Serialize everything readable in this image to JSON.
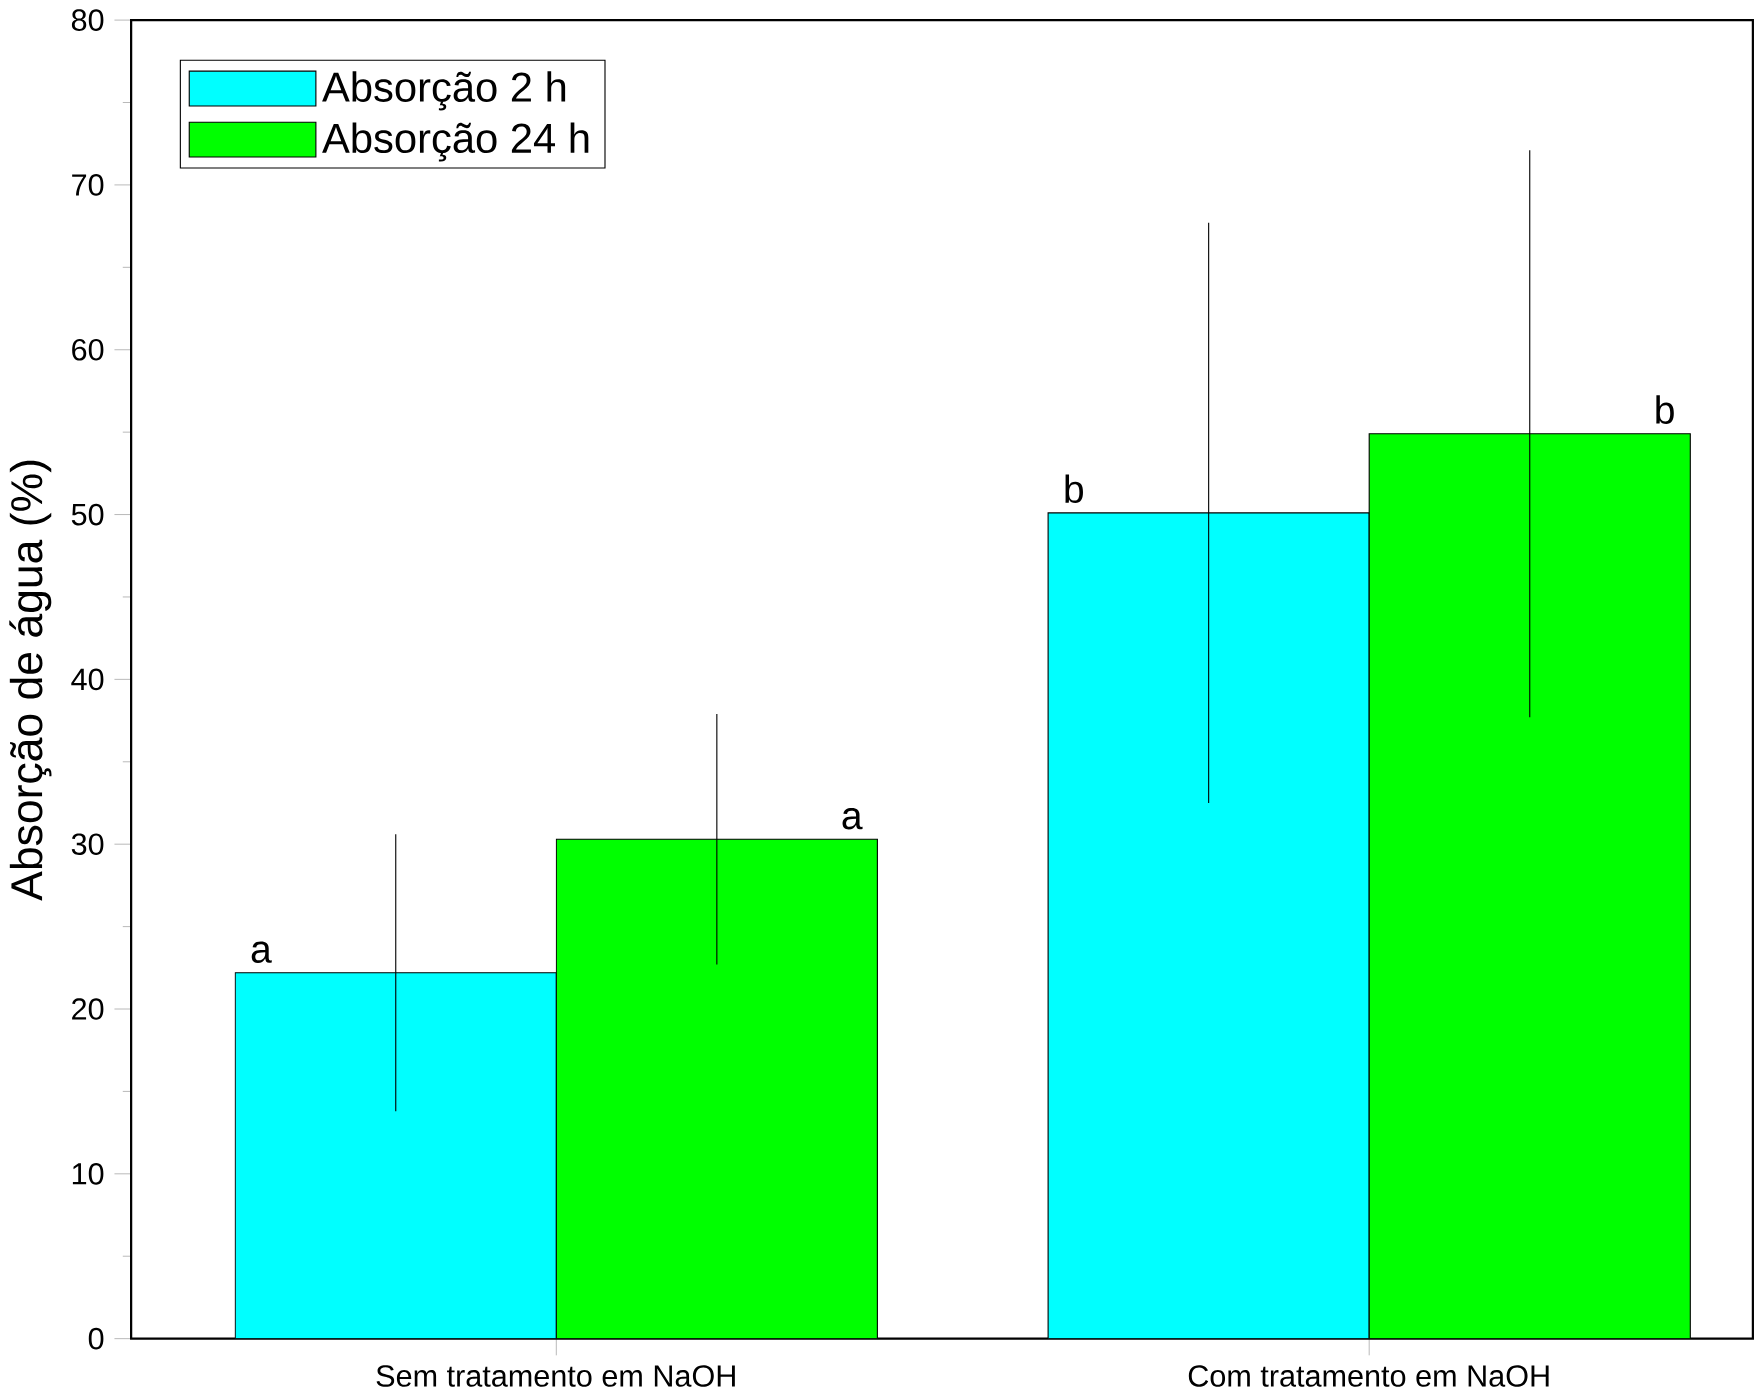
{
  "chart_data": {
    "type": "bar",
    "ylabel": "Absorção de água (%)",
    "categories": [
      "Sem tratamento em NaOH",
      "Com tratamento em NaOH"
    ],
    "series": [
      {
        "name": "Absorção 2 h",
        "color": "#00ffff",
        "values": [
          22.2,
          50.1
        ],
        "errors": [
          8.4,
          17.6
        ]
      },
      {
        "name": "Absorção 24 h",
        "color": "#00ff00",
        "values": [
          30.3,
          54.9
        ],
        "errors": [
          7.6,
          17.2
        ]
      }
    ],
    "annotations": [
      "a",
      "a",
      "b",
      "b"
    ],
    "ylim": [
      0,
      80
    ],
    "yticks": [
      0,
      10,
      20,
      30,
      40,
      50,
      60,
      70,
      80
    ],
    "legend": "top left",
    "grid": false
  }
}
